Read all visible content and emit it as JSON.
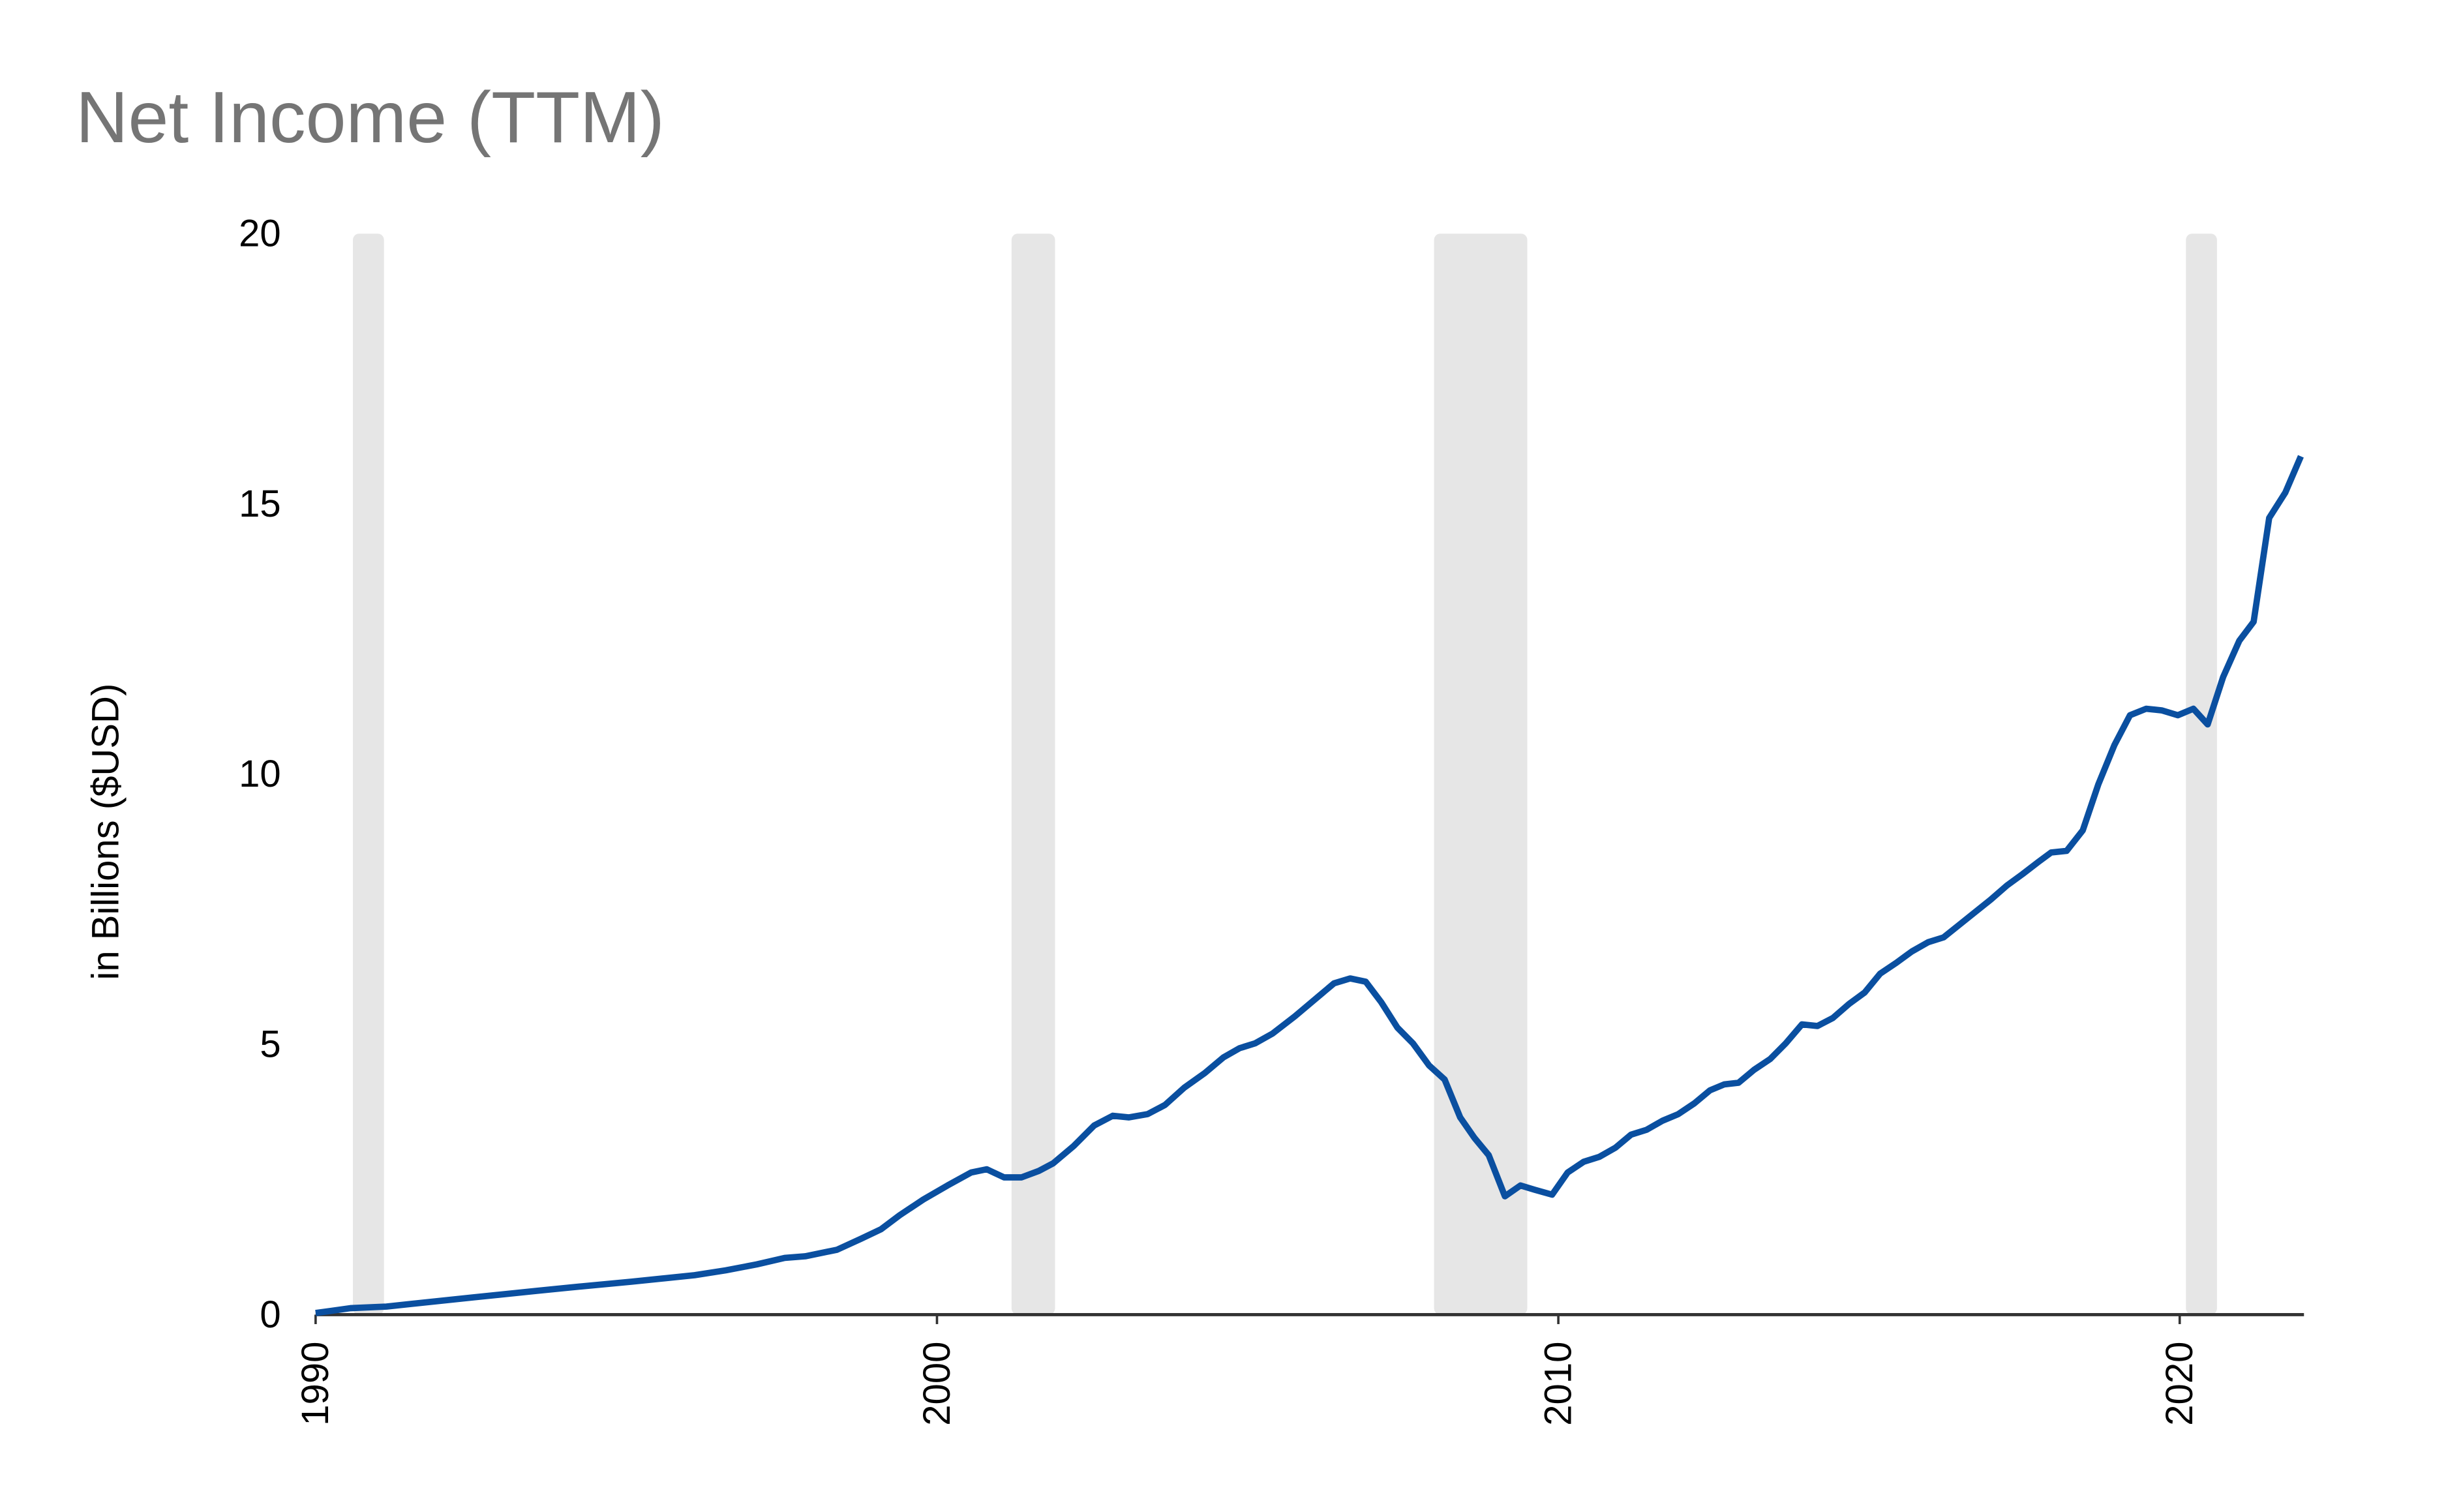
{
  "chart_data": {
    "type": "line",
    "title": "Net Income (TTM)",
    "ylabel": "in Billions ($USD)",
    "color": "#0a4fa0",
    "recession_color": "#e6e6e6",
    "xlim": [
      1990,
      2022
    ],
    "xticks": [
      1990,
      2000,
      2010,
      2020
    ],
    "ylim": [
      0,
      20
    ],
    "yticks": [
      0,
      5,
      10,
      15,
      20
    ],
    "grid": false,
    "recessions": [
      [
        1990.6,
        1991.1
      ],
      [
        2001.2,
        2001.9
      ],
      [
        2008.0,
        2009.5
      ],
      [
        2020.1,
        2020.6
      ]
    ],
    "x": [
      1990.0,
      1990.56,
      1991.14,
      1992.54,
      1993.56,
      1994.07,
      1995.08,
      1996.1,
      1996.6,
      1997.1,
      1997.55,
      1997.88,
      1998.39,
      1998.77,
      1999.1,
      1999.4,
      1999.78,
      2000.17,
      2000.55,
      2000.8,
      2001.08,
      2001.36,
      2001.64,
      2001.87,
      2002.2,
      2002.53,
      2002.83,
      2003.09,
      2003.39,
      2003.67,
      2003.98,
      2004.31,
      2004.61,
      2004.87,
      2005.12,
      2005.4,
      2005.76,
      2006.09,
      2006.39,
      2006.65,
      2006.9,
      2007.15,
      2007.41,
      2007.66,
      2007.92,
      2008.17,
      2008.42,
      2008.65,
      2008.88,
      2009.14,
      2009.39,
      2009.62,
      2009.9,
      2010.15,
      2010.41,
      2010.66,
      2010.92,
      2011.17,
      2011.42,
      2011.68,
      2011.93,
      2012.19,
      2012.44,
      2012.67,
      2012.9,
      2013.15,
      2013.41,
      2013.66,
      2013.92,
      2014.17,
      2014.42,
      2014.68,
      2014.93,
      2015.18,
      2015.44,
      2015.69,
      2015.95,
      2016.2,
      2016.45,
      2016.71,
      2016.96,
      2017.22,
      2017.47,
      2017.73,
      2017.93,
      2018.18,
      2018.44,
      2018.69,
      2018.95,
      2019.2,
      2019.46,
      2019.71,
      2019.97,
      2020.22,
      2020.45,
      2020.7,
      2020.96,
      2021.19,
      2021.44,
      2021.7,
      2021.95
    ],
    "values": [
      0.03,
      0.12,
      0.15,
      0.32,
      0.44,
      0.5,
      0.61,
      0.73,
      0.82,
      0.93,
      1.05,
      1.08,
      1.2,
      1.4,
      1.58,
      1.84,
      2.13,
      2.39,
      2.63,
      2.69,
      2.54,
      2.54,
      2.66,
      2.8,
      3.12,
      3.5,
      3.68,
      3.65,
      3.71,
      3.88,
      4.2,
      4.47,
      4.76,
      4.93,
      5.02,
      5.2,
      5.52,
      5.84,
      6.13,
      6.22,
      6.16,
      5.78,
      5.31,
      5.02,
      4.61,
      4.35,
      3.65,
      3.27,
      2.95,
      2.19,
      2.39,
      2.31,
      2.22,
      2.63,
      2.83,
      2.92,
      3.09,
      3.33,
      3.42,
      3.59,
      3.71,
      3.91,
      4.15,
      4.26,
      4.29,
      4.53,
      4.73,
      5.02,
      5.37,
      5.34,
      5.49,
      5.75,
      5.96,
      6.31,
      6.51,
      6.72,
      6.89,
      6.98,
      7.21,
      7.45,
      7.68,
      7.94,
      8.15,
      8.38,
      8.55,
      8.58,
      8.96,
      9.81,
      10.54,
      11.09,
      11.21,
      11.18,
      11.09,
      11.21,
      10.92,
      11.8,
      12.47,
      12.82,
      14.74,
      15.21,
      15.88
    ]
  }
}
